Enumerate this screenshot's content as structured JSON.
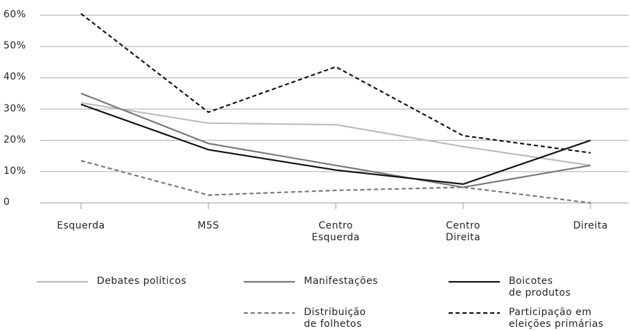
{
  "chart_data": {
    "type": "line",
    "categories": [
      "Esquerda",
      "M5S",
      "Centro\nEsquerda",
      "Centro\nDireita",
      "Direita"
    ],
    "ylim": [
      0,
      60
    ],
    "yticks": [
      0,
      {
        "value": 10,
        "label": "10%"
      },
      {
        "value": 20,
        "label": "20%"
      },
      {
        "value": 30,
        "label": "30%"
      },
      {
        "value": 40,
        "label": "40%"
      },
      {
        "value": 50,
        "label": "50%"
      },
      {
        "value": 60,
        "label": "60%"
      }
    ],
    "grid": true,
    "series": [
      {
        "name": "Debates políticos",
        "color": "#bbbbbb",
        "dash": false,
        "values": [
          32,
          25.5,
          25,
          18,
          12
        ]
      },
      {
        "name": "Manifestações",
        "color": "#777777",
        "dash": false,
        "values": [
          35,
          19,
          12,
          5,
          12
        ]
      },
      {
        "name": "Boicotes\nde produtos",
        "color": "#111111",
        "dash": false,
        "values": [
          31.5,
          17,
          10.5,
          6,
          20
        ]
      },
      {
        "name": "Distribuição\nde folhetos",
        "color": "#777777",
        "dash": true,
        "values": [
          13.5,
          2.5,
          4,
          5,
          0
        ]
      },
      {
        "name": "Participação em\neleições primárias",
        "color": "#111111",
        "dash": true,
        "values": [
          60.5,
          29,
          43.5,
          21.5,
          16
        ]
      }
    ]
  }
}
